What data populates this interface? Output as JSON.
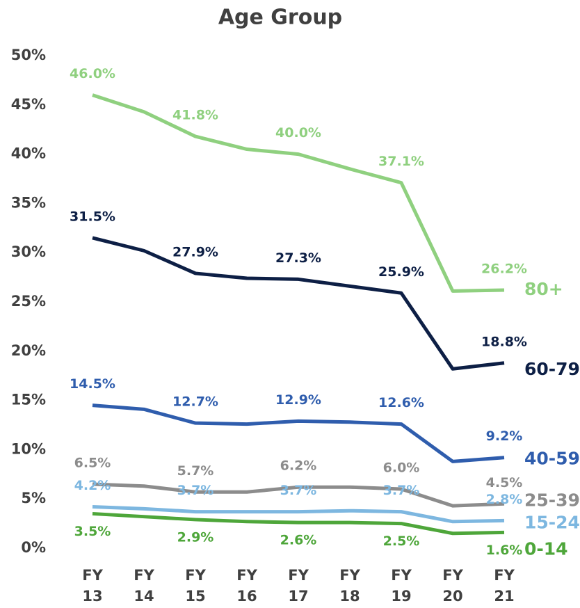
{
  "chart_data": {
    "type": "line",
    "title": "Age Group",
    "categories": [
      "FY 13",
      "FY 14",
      "FY 15",
      "FY 16",
      "FY 17",
      "FY 18",
      "FY 19",
      "FY 20",
      "FY 21"
    ],
    "ylim": [
      0,
      50
    ],
    "yticks": [
      {
        "value": 0,
        "label": "0%"
      },
      {
        "value": 5,
        "label": "5%"
      },
      {
        "value": 10,
        "label": "10%"
      },
      {
        "value": 15,
        "label": "15%"
      },
      {
        "value": 20,
        "label": "20%"
      },
      {
        "value": 25,
        "label": "25%"
      },
      {
        "value": 30,
        "label": "30%"
      },
      {
        "value": 35,
        "label": "35%"
      },
      {
        "value": 40,
        "label": "40%"
      },
      {
        "value": 45,
        "label": "45%"
      },
      {
        "value": 50,
        "label": "50%"
      }
    ],
    "grid": false,
    "series": [
      {
        "name": "80+",
        "color": "#8fd07f",
        "values": [
          46.0,
          44.3,
          41.8,
          40.5,
          40.0,
          38.5,
          37.1,
          26.1,
          26.2
        ],
        "value_labels": [
          "46.0%",
          null,
          "41.8%",
          null,
          "40.0%",
          null,
          "37.1%",
          null,
          "26.2%"
        ]
      },
      {
        "name": "60-79",
        "color": "#0d1f45",
        "values": [
          31.5,
          30.2,
          27.9,
          27.4,
          27.3,
          26.6,
          25.9,
          18.2,
          18.8
        ],
        "value_labels": [
          "31.5%",
          null,
          "27.9%",
          null,
          "27.3%",
          null,
          "25.9%",
          null,
          "18.8%"
        ]
      },
      {
        "name": "40-59",
        "color": "#2f5dad",
        "values": [
          14.5,
          14.1,
          12.7,
          12.6,
          12.9,
          12.8,
          12.6,
          8.8,
          9.2
        ],
        "value_labels": [
          "14.5%",
          null,
          "12.7%",
          null,
          "12.9%",
          null,
          "12.6%",
          null,
          "9.2%"
        ]
      },
      {
        "name": "25-39",
        "color": "#8c8c8c",
        "values": [
          6.5,
          6.3,
          5.7,
          5.7,
          6.2,
          6.2,
          6.0,
          4.3,
          4.5
        ],
        "value_labels": [
          "6.5%",
          null,
          "5.7%",
          null,
          "6.2%",
          null,
          "6.0%",
          null,
          "4.5%"
        ]
      },
      {
        "name": "15-24",
        "color": "#7db7e0",
        "values": [
          4.2,
          4.0,
          3.7,
          3.7,
          3.7,
          3.8,
          3.7,
          2.7,
          2.8
        ],
        "value_labels": [
          "4.2%",
          null,
          "3.7%",
          null,
          "3.7%",
          null,
          "3.7%",
          null,
          "2.8%"
        ]
      },
      {
        "name": "0-14",
        "color": "#4ea63a",
        "values": [
          3.5,
          3.2,
          2.9,
          2.7,
          2.6,
          2.6,
          2.5,
          1.5,
          1.6
        ],
        "value_labels": [
          "3.5%",
          null,
          "2.9%",
          null,
          "2.6%",
          null,
          "2.5%",
          null,
          "1.6%"
        ]
      }
    ]
  }
}
